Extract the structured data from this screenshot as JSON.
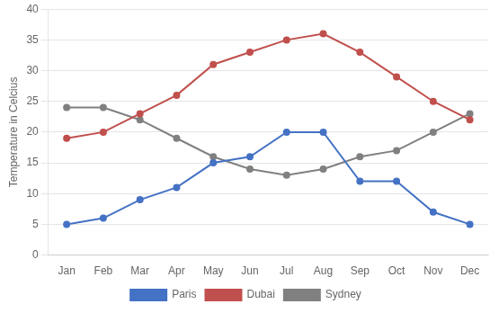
{
  "chart_data": {
    "type": "line",
    "y_label": "Temperature in Celcius",
    "categories": [
      "Jan",
      "Feb",
      "Mar",
      "Apr",
      "May",
      "Jun",
      "Jul",
      "Aug",
      "Sep",
      "Oct",
      "Nov",
      "Dec"
    ],
    "series": [
      {
        "name": "Paris",
        "color": "#4472C4",
        "values": [
          5,
          6,
          9,
          11,
          15,
          16,
          20,
          20,
          12,
          12,
          7,
          5
        ]
      },
      {
        "name": "Dubai",
        "color": "#C0504D",
        "values": [
          19,
          20,
          23,
          26,
          31,
          33,
          35,
          36,
          33,
          29,
          25,
          22
        ]
      },
      {
        "name": "Sydney",
        "color": "#808080",
        "values": [
          24,
          24,
          22,
          19,
          16,
          14,
          13,
          14,
          16,
          17,
          20,
          23
        ]
      }
    ],
    "marker": "circle",
    "ylim": [
      0,
      40
    ],
    "yticks": [
      0,
      5,
      10,
      15,
      20,
      25,
      30,
      35,
      40
    ],
    "grid": true,
    "legend": "bottom"
  }
}
